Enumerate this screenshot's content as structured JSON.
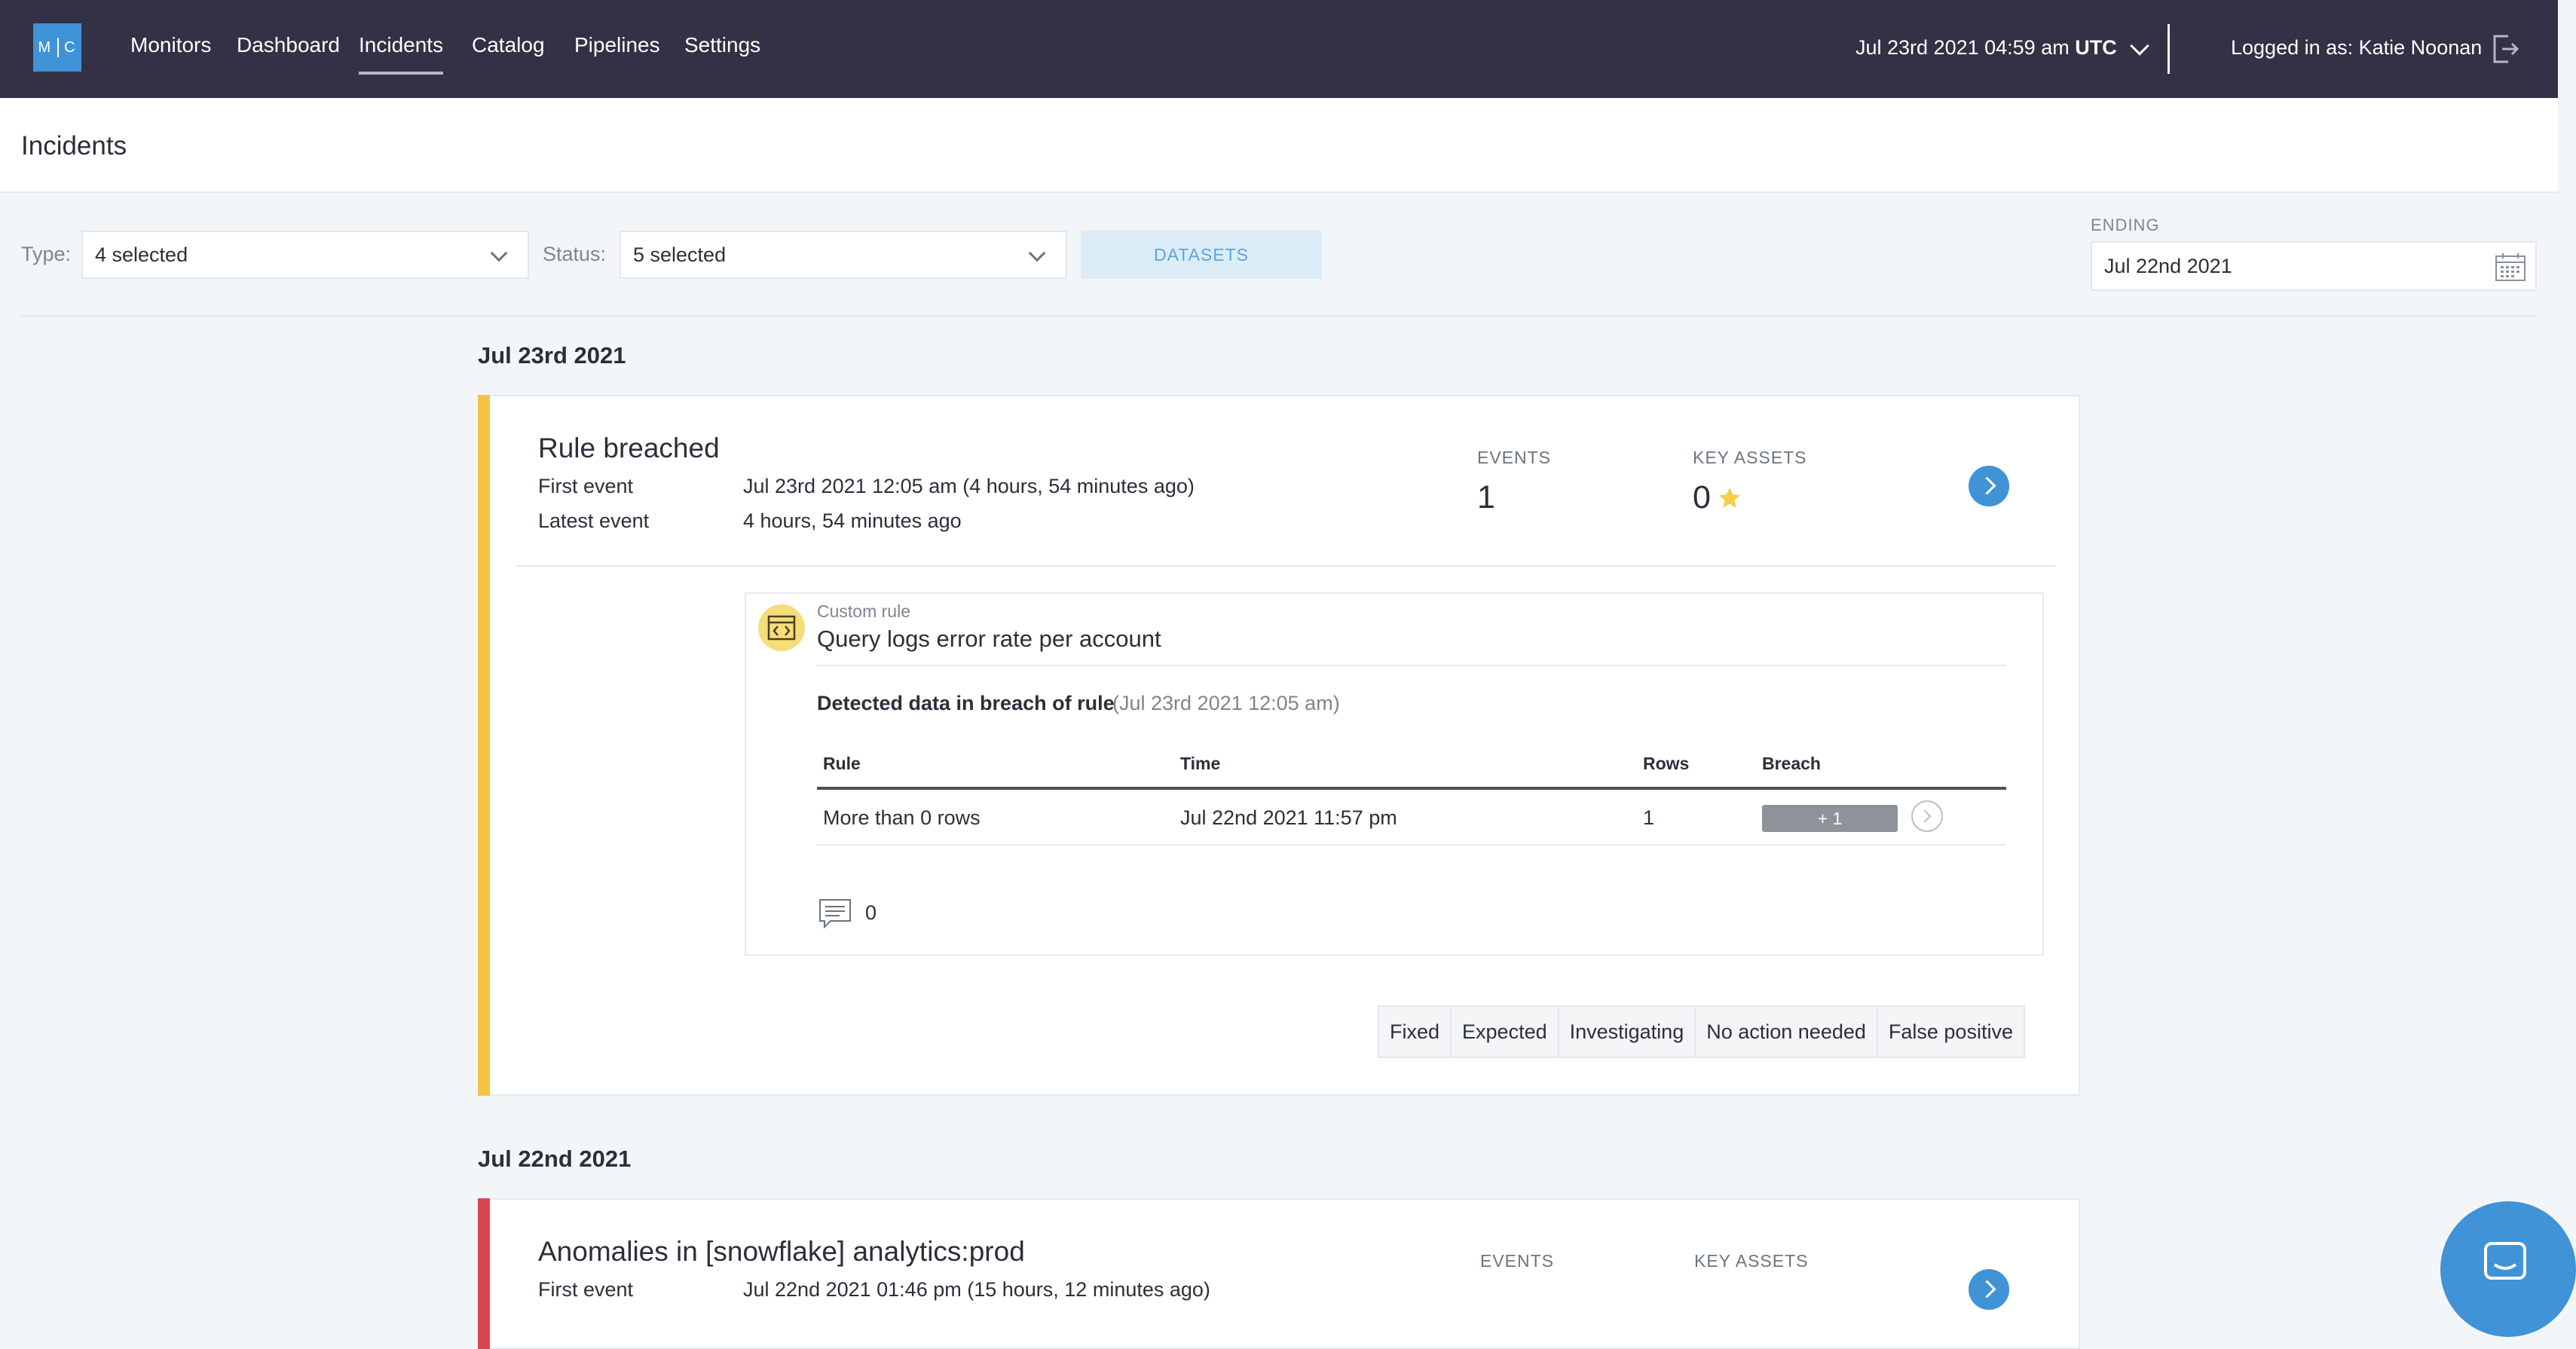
{
  "colors": {
    "nav_bg": "#343045",
    "brand_blue": "#3f93d6",
    "accent_yellow": "#f5c342",
    "accent_red": "#d9454f"
  },
  "logo": {
    "left": "M",
    "right": "C"
  },
  "nav": {
    "items": [
      "Monitors",
      "Dashboard",
      "Incidents",
      "Catalog",
      "Pipelines",
      "Settings"
    ],
    "active": "Incidents"
  },
  "header": {
    "datetime": "Jul 23rd 2021 04:59 am",
    "timezone": "UTC",
    "logged_in": "Logged in as: Katie Noonan",
    "logout_icon": "logout-icon"
  },
  "page": {
    "title": "Incidents"
  },
  "filters": {
    "type_label": "Type:",
    "type_value": "4 selected",
    "status_label": "Status:",
    "status_value": "5 selected",
    "datasets_label": "DATASETS",
    "ending_label": "ENDING",
    "ending_value": "Jul 22nd 2021"
  },
  "groups": [
    {
      "date": "Jul 23rd 2021",
      "incident": {
        "title": "Rule breached",
        "first_event_label": "First event",
        "first_event_value": "Jul 23rd 2021 12:05 am (4 hours, 54 minutes ago)",
        "latest_event_label": "Latest event",
        "latest_event_value": "4 hours, 54 minutes ago",
        "events_label": "EVENTS",
        "events_value": "1",
        "key_assets_label": "KEY ASSETS",
        "key_assets_value": "0",
        "rule": {
          "kind": "Custom rule",
          "name": "Query logs error rate per account",
          "breach_heading": "Detected data in breach of rule",
          "breach_time": "(Jul 23rd 2021 12:05 am)",
          "columns": [
            "Rule",
            "Time",
            "Rows",
            "Breach"
          ],
          "rows": [
            {
              "rule": "More than 0 rows",
              "time": "Jul 22nd 2021 11:57 pm",
              "rows": "1",
              "breach": "+ 1"
            }
          ],
          "comments": "0"
        },
        "statuses": [
          "Fixed",
          "Expected",
          "Investigating",
          "No action needed",
          "False positive"
        ]
      }
    },
    {
      "date": "Jul 22nd 2021",
      "incident": {
        "title": "Anomalies in [snowflake] analytics:prod",
        "first_event_label": "First event",
        "first_event_value": "Jul 22nd 2021 01:46 pm (15 hours, 12 minutes ago)",
        "events_label": "EVENTS",
        "key_assets_label": "KEY ASSETS"
      }
    }
  ]
}
